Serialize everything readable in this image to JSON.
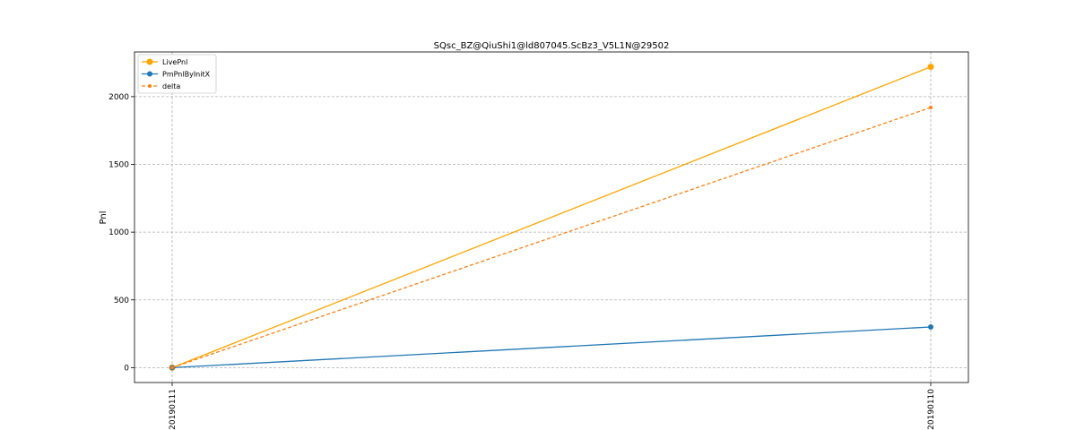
{
  "chart_data": {
    "type": "line",
    "title": "SQsc_BZ@QiuShi1@ld807045.ScBz3_V5L1N@29502",
    "xlabel": "",
    "ylabel": "Pnl",
    "categories": [
      "20190111",
      "20190110"
    ],
    "ylim": [
      -110,
      2330
    ],
    "yticks": [
      0,
      500,
      1000,
      1500,
      2000
    ],
    "grid": true,
    "legend_position": "top-left",
    "series": [
      {
        "name": "LivePnl",
        "values": [
          0,
          2220
        ],
        "color": "#ffa500",
        "style": "solid",
        "marker": "large-dot"
      },
      {
        "name": "PmPnlByInitX",
        "values": [
          0,
          300
        ],
        "color": "#1f77b4",
        "style": "solid",
        "marker": "dot"
      },
      {
        "name": "delta",
        "values": [
          0,
          1920
        ],
        "color": "#ff7f0e",
        "style": "dashed",
        "marker": "small-dot"
      }
    ]
  }
}
